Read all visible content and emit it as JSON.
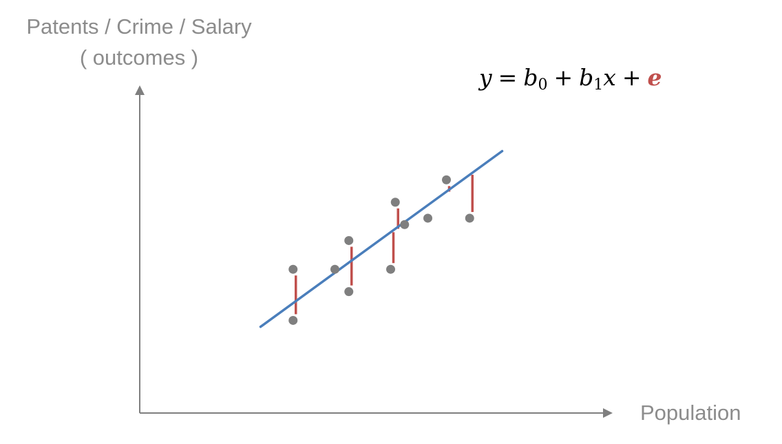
{
  "labels": {
    "y_axis_line1": "Patents / Crime / Salary",
    "y_axis_line2": "( outcomes )",
    "x_axis": "Population"
  },
  "equation": {
    "lhs": "y",
    "equals": "=",
    "b": "b",
    "b0_sub": "0",
    "plus": "+",
    "b1_sub": "1",
    "x": "x",
    "error_term": "e"
  },
  "colors": {
    "axis": "#7f7f7f",
    "points": "#7f7f7f",
    "regression_line": "#4a7ebb",
    "residuals": "#c0504d",
    "error_term": "#c0504d"
  },
  "model": {
    "x_domain": [
      0,
      100
    ],
    "y_domain": [
      0,
      100
    ],
    "regression_line": {
      "x_start": 26,
      "x_end": 78,
      "y_start": 27,
      "y_end": 82
    },
    "points": [
      {
        "x": 33,
        "y": 45,
        "residual": true
      },
      {
        "x": 33,
        "y": 29,
        "residual": true
      },
      {
        "x": 42,
        "y": 45,
        "residual": false
      },
      {
        "x": 45,
        "y": 54,
        "residual": true
      },
      {
        "x": 45,
        "y": 38,
        "residual": true
      },
      {
        "x": 55,
        "y": 66,
        "residual": true
      },
      {
        "x": 57,
        "y": 59,
        "residual": false
      },
      {
        "x": 54,
        "y": 45,
        "residual": true
      },
      {
        "x": 62,
        "y": 61,
        "residual": false
      },
      {
        "x": 66,
        "y": 73,
        "residual": true
      },
      {
        "x": 71,
        "y": 61,
        "residual": true
      }
    ]
  }
}
